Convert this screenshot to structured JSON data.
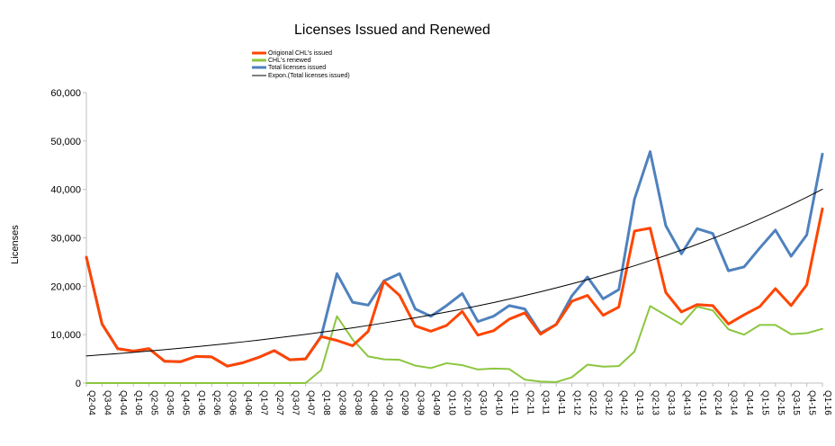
{
  "chart_data": {
    "type": "line",
    "title": "Licenses Issued and Renewed",
    "xlabel": "",
    "ylabel": "Licenses",
    "ylim": [
      0,
      60000
    ],
    "yticks": [
      0,
      10000,
      20000,
      30000,
      40000,
      50000,
      60000
    ],
    "ytick_labels": [
      "0",
      "10,000",
      "20,000",
      "30,000",
      "40,000",
      "50,000",
      "60,000"
    ],
    "grid": false,
    "legend_position": "top-center",
    "categories": [
      "Q2-04",
      "Q3-04",
      "Q4-04",
      "Q1-05",
      "Q2-05",
      "Q3-05",
      "Q4-05",
      "Q1-06",
      "Q2-06",
      "Q3-06",
      "Q4-06",
      "Q1-07",
      "Q2-07",
      "Q3-07",
      "Q4-07",
      "Q1-08",
      "Q2-08",
      "Q3-08",
      "Q4-08",
      "Q1-09",
      "Q2-09",
      "Q3-09",
      "Q4-09",
      "Q1-10",
      "Q2-10",
      "Q3-10",
      "Q4-10",
      "Q1-11",
      "Q2-11",
      "Q3-11",
      "Q4-11",
      "Q1-12",
      "Q2-12",
      "Q3-12",
      "Q4-12",
      "Q1-13",
      "Q2-13",
      "Q3-13",
      "Q4-13",
      "Q1-14",
      "Q2-14",
      "Q3-14",
      "Q4-14",
      "Q1-15",
      "Q2-15",
      "Q3-15",
      "Q4-15",
      "Q1-16"
    ],
    "series": [
      {
        "name": "Total licenses issued",
        "color": "#4f81bd",
        "width": 3,
        "values": [
          26000,
          12200,
          7100,
          6600,
          7100,
          4500,
          4400,
          5500,
          5400,
          3500,
          4200,
          5300,
          6700,
          4800,
          5000,
          9700,
          22600,
          16700,
          16100,
          21100,
          22600,
          15300,
          13800,
          16000,
          18500,
          12700,
          13800,
          16000,
          15300,
          10300,
          12100,
          18000,
          21900,
          17400,
          19300,
          38000,
          47800,
          32500,
          26700,
          31900,
          30900,
          23200,
          24000,
          27900,
          31600,
          26200,
          30600,
          47300
        ]
      },
      {
        "name": "Origional CHL's issued",
        "color": "#ff4500",
        "width": 3,
        "values": [
          26000,
          12200,
          7100,
          6600,
          7100,
          4500,
          4400,
          5500,
          5400,
          3500,
          4200,
          5300,
          6700,
          4800,
          5000,
          9600,
          8800,
          7700,
          10700,
          21000,
          18100,
          11800,
          10700,
          11900,
          14800,
          9900,
          10800,
          13200,
          14500,
          10100,
          12100,
          16900,
          18100,
          14000,
          15700,
          31400,
          32000,
          18700,
          14700,
          16200,
          16000,
          12200,
          14100,
          15800,
          19500,
          16000,
          20300,
          36000
        ]
      },
      {
        "name": "CHL's renewed",
        "color": "#8cc63f",
        "width": 2,
        "values": [
          0,
          0,
          0,
          0,
          0,
          0,
          0,
          0,
          0,
          0,
          0,
          0,
          0,
          0,
          0,
          2700,
          13800,
          9000,
          5500,
          4900,
          4800,
          3600,
          3100,
          4100,
          3700,
          2800,
          3000,
          2900,
          700,
          300,
          200,
          1200,
          3800,
          3400,
          3500,
          6500,
          15900,
          14000,
          12100,
          15800,
          15000,
          11100,
          10000,
          12000,
          12000,
          10100,
          10300,
          11200
        ]
      },
      {
        "name": "Expon.(Total licenses issued)",
        "color": "#000000",
        "width": 1,
        "values": [
          5600,
          5840,
          6090,
          6350,
          6620,
          6900,
          7200,
          7510,
          7830,
          8160,
          8510,
          8880,
          9260,
          9650,
          10060,
          10490,
          10940,
          11410,
          11900,
          12410,
          12940,
          13490,
          14070,
          14670,
          15290,
          15950,
          16630,
          17340,
          18080,
          18850,
          19660,
          20500,
          21370,
          22290,
          23240,
          24230,
          25270,
          26350,
          27470,
          28650,
          29870,
          31150,
          32480,
          33870,
          35310,
          36820,
          38400,
          40040
        ]
      }
    ]
  }
}
